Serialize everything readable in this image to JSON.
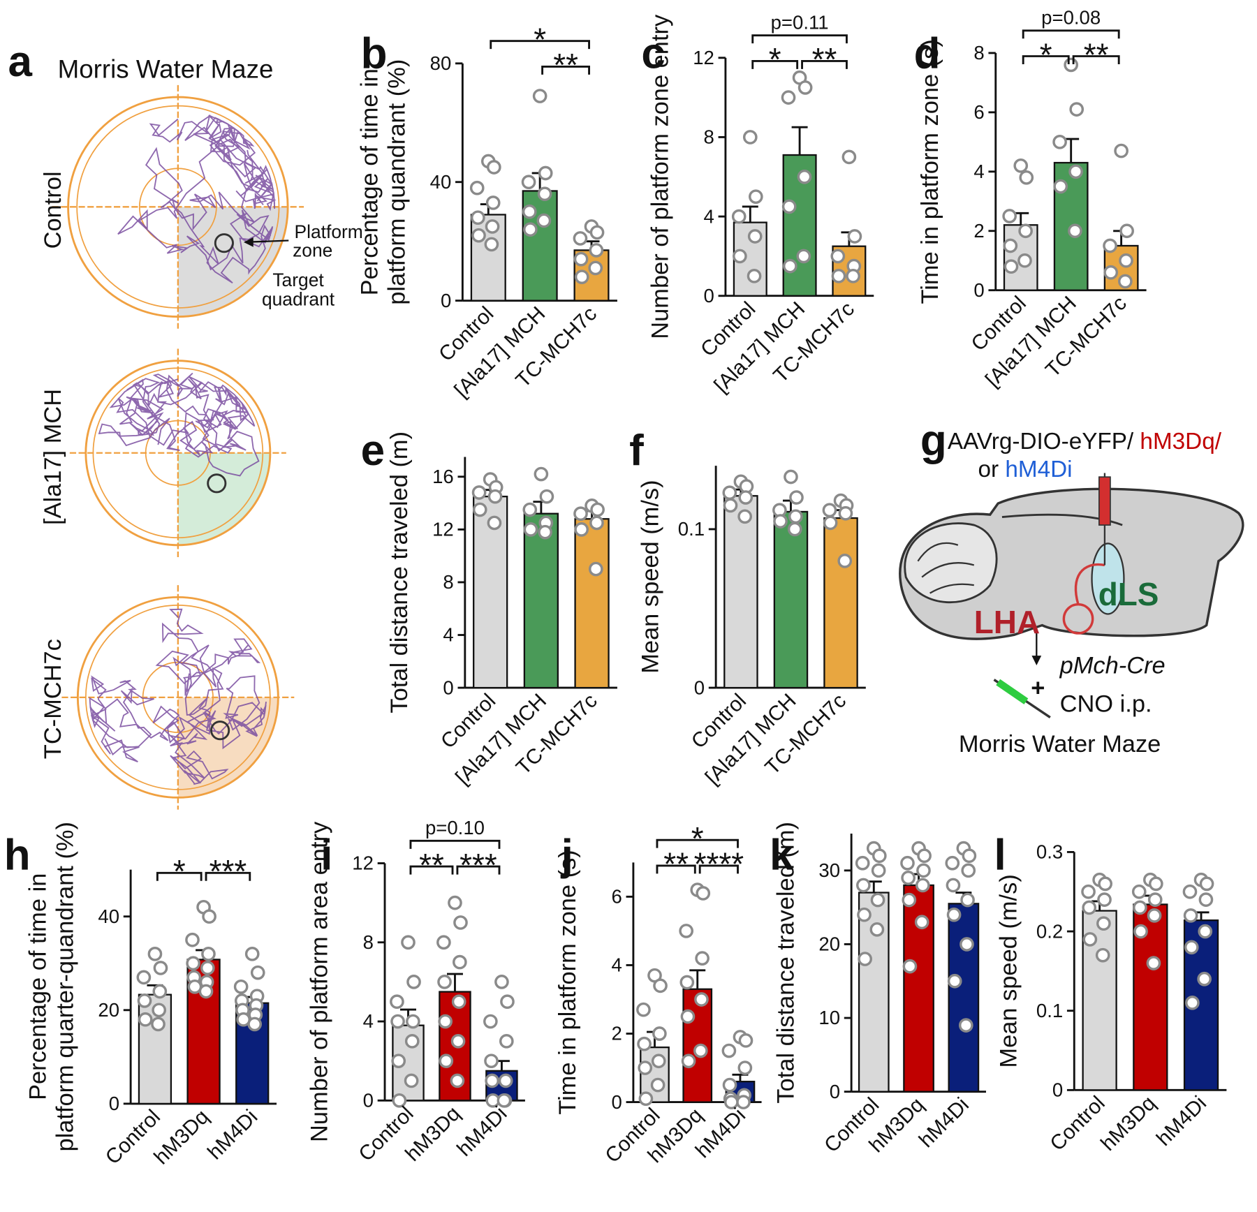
{
  "panel_a": {
    "label": "a",
    "title": "Morris Water Maze",
    "rows": [
      "Control",
      "[Ala17] MCH",
      "TC-MCH7c"
    ],
    "platform_zone": [
      "Platform",
      "zone"
    ],
    "target_quadrant": [
      "Target",
      "quadrant"
    ]
  },
  "panel_g": {
    "label": "g",
    "virus": [
      "AAVrg-DIO-eYFP/",
      " hM3Dq/",
      "or ",
      "hM4Di"
    ],
    "regions": [
      "LHA",
      "dLS"
    ],
    "mouse": "pMch-Cre",
    "plus": "+",
    "drug": "CNO i.p.",
    "task": "Morris Water Maze"
  },
  "chart_data": [
    {
      "type": "bar",
      "panel": "b",
      "ylabel": [
        "Percentage of time in",
        "platform quandrant (%)"
      ],
      "categories": [
        "Control",
        "[Ala17] MCH",
        "TC-MCH7c"
      ],
      "colors": [
        "#d9d9d9",
        "#4a9a58",
        "#e8a640"
      ],
      "values": [
        29,
        37,
        17
      ],
      "errors": [
        3.5,
        6,
        3
      ],
      "points": [
        [
          47,
          45,
          38,
          33,
          28,
          25,
          22,
          19
        ],
        [
          69,
          43,
          40,
          36,
          30,
          27,
          24
        ],
        [
          25,
          23,
          21,
          17,
          14,
          11,
          8
        ]
      ],
      "ylim": [
        0,
        80
      ],
      "yticks": [
        0,
        40,
        80
      ],
      "significance": [
        {
          "text": "*",
          "between": [
            "Control",
            "TC-MCH7c"
          ]
        },
        {
          "text": "**",
          "between": [
            "[Ala17] MCH",
            "TC-MCH7c"
          ]
        }
      ]
    },
    {
      "type": "bar",
      "panel": "c",
      "ylabel": [
        "Number of platform zone entry"
      ],
      "categories": [
        "Control",
        "[Ala17] MCH",
        "TC-MCH7c"
      ],
      "colors": [
        "#d9d9d9",
        "#4a9a58",
        "#e8a640"
      ],
      "values": [
        3.7,
        7.1,
        2.5
      ],
      "errors": [
        0.8,
        1.4,
        0.7
      ],
      "points": [
        [
          8,
          5,
          4,
          3,
          2,
          1
        ],
        [
          11,
          10.5,
          10,
          6,
          4.5,
          2,
          1.5
        ],
        [
          7,
          3,
          2,
          1.5,
          1,
          1
        ]
      ],
      "ylim": [
        0,
        12
      ],
      "yticks": [
        0,
        4,
        8,
        12
      ],
      "significance": [
        {
          "text": "p=0.11",
          "between": [
            "Control",
            "TC-MCH7c"
          ]
        },
        {
          "text": "*",
          "between": [
            "Control",
            "[Ala17] MCH"
          ]
        },
        {
          "text": "**",
          "between": [
            "[Ala17] MCH",
            "TC-MCH7c"
          ]
        }
      ]
    },
    {
      "type": "bar",
      "panel": "d",
      "ylabel": [
        "Time in platform zone (s)"
      ],
      "categories": [
        "Control",
        "[Ala17] MCH",
        "TC-MCH7c"
      ],
      "colors": [
        "#d9d9d9",
        "#4a9a58",
        "#e8a640"
      ],
      "values": [
        2.2,
        4.3,
        1.5
      ],
      "errors": [
        0.4,
        0.8,
        0.5
      ],
      "points": [
        [
          4.2,
          3.8,
          2.5,
          2,
          1.5,
          1,
          0.8
        ],
        [
          7.6,
          6.1,
          5,
          4,
          3.5,
          2
        ],
        [
          4.7,
          2,
          1.5,
          1,
          0.6,
          0.3
        ]
      ],
      "ylim": [
        0,
        8
      ],
      "yticks": [
        0,
        2,
        4,
        6,
        8
      ],
      "significance": [
        {
          "text": "p=0.08",
          "between": [
            "Control",
            "TC-MCH7c"
          ]
        },
        {
          "text": "*",
          "between": [
            "Control",
            "[Ala17] MCH"
          ]
        },
        {
          "text": "**",
          "between": [
            "[Ala17] MCH",
            "TC-MCH7c"
          ]
        }
      ]
    },
    {
      "type": "bar",
      "panel": "e",
      "ylabel": [
        "Total distance traveled (m)"
      ],
      "categories": [
        "Control",
        "[Ala17] MCH",
        "TC-MCH7c"
      ],
      "colors": [
        "#d9d9d9",
        "#4a9a58",
        "#e8a640"
      ],
      "values": [
        14.5,
        13.2,
        12.8
      ],
      "errors": [
        0.5,
        0.9,
        0.6
      ],
      "points": [
        [
          15.8,
          15.2,
          14.8,
          14.5,
          13.5,
          12.5
        ],
        [
          16.2,
          14.5,
          13.5,
          12.5,
          12,
          11.8
        ],
        [
          13.8,
          13.5,
          13.2,
          12.5,
          12,
          9
        ]
      ],
      "ylim": [
        0,
        17.5
      ],
      "yticks": [
        0,
        4,
        8,
        12,
        16
      ],
      "significance": []
    },
    {
      "type": "bar",
      "panel": "f",
      "ylabel": [
        "Mean speed (m/s)"
      ],
      "categories": [
        "Control",
        "[Ala17] MCH",
        "TC-MCH7c"
      ],
      "colors": [
        "#d9d9d9",
        "#4a9a58",
        "#e8a640"
      ],
      "values": [
        0.121,
        0.111,
        0.107
      ],
      "errors": [
        0.004,
        0.007,
        0.005
      ],
      "points": [
        [
          0.13,
          0.127,
          0.123,
          0.12,
          0.115,
          0.108
        ],
        [
          0.133,
          0.12,
          0.112,
          0.108,
          0.105,
          0.1
        ],
        [
          0.118,
          0.115,
          0.112,
          0.11,
          0.104,
          0.08
        ]
      ],
      "ylim": [
        0,
        0.14
      ],
      "yticks": [
        0,
        0.1
      ],
      "significance": []
    },
    {
      "type": "bar",
      "panel": "h",
      "ylabel": [
        "Percentage of time in",
        "platform quarter-quandrant (%)"
      ],
      "categories": [
        "Control",
        "hM3Dq",
        "hM4Di"
      ],
      "colors": [
        "#d9d9d9",
        "#c00000",
        "#0a1f7a"
      ],
      "values": [
        23.3,
        30.8,
        21.5
      ],
      "errors": [
        2,
        2,
        1.3
      ],
      "points": [
        [
          32,
          29,
          27,
          24,
          22,
          20,
          18,
          17
        ],
        [
          42,
          40,
          35,
          32,
          30,
          29,
          27,
          26,
          25,
          24
        ],
        [
          32,
          28,
          25,
          23,
          22,
          21,
          20,
          19,
          18,
          17
        ]
      ],
      "ylim": [
        0,
        50
      ],
      "yticks": [
        0,
        20,
        40
      ],
      "significance": [
        {
          "text": "*",
          "between": [
            "Control",
            "hM3Dq"
          ]
        },
        {
          "text": "***",
          "between": [
            "hM3Dq",
            "hM4Di"
          ]
        }
      ]
    },
    {
      "type": "bar",
      "panel": "i",
      "ylabel": [
        "Number of platform area entry"
      ],
      "categories": [
        "Control",
        "hM3Dq",
        "hM4Di"
      ],
      "colors": [
        "#d9d9d9",
        "#c00000",
        "#0a1f7a"
      ],
      "values": [
        3.8,
        5.5,
        1.5
      ],
      "errors": [
        0.8,
        0.9,
        0.5
      ],
      "points": [
        [
          8,
          6,
          5,
          4,
          4,
          3,
          2,
          1,
          0
        ],
        [
          10,
          9,
          8,
          7,
          6,
          5,
          4,
          3,
          2,
          1
        ],
        [
          6,
          5,
          4,
          3,
          2,
          1,
          1,
          0,
          0,
          0
        ]
      ],
      "ylim": [
        0,
        12
      ],
      "yticks": [
        0,
        4,
        8,
        12
      ],
      "significance": [
        {
          "text": "p=0.10",
          "between": [
            "Control",
            "hM4Di"
          ]
        },
        {
          "text": "**",
          "between": [
            "Control",
            "hM3Dq"
          ]
        },
        {
          "text": "***",
          "between": [
            "hM3Dq",
            "hM4Di"
          ]
        }
      ]
    },
    {
      "type": "bar",
      "panel": "j",
      "ylabel": [
        "Time in platform zone (s)"
      ],
      "categories": [
        "Control",
        "hM3Dq",
        "hM4Di"
      ],
      "colors": [
        "#d9d9d9",
        "#c00000",
        "#0a1f7a"
      ],
      "values": [
        1.6,
        3.3,
        0.6
      ],
      "errors": [
        0.45,
        0.55,
        0.2
      ],
      "points": [
        [
          3.7,
          3.4,
          2.7,
          2,
          1.7,
          1.2,
          1,
          0.5,
          0.1
        ],
        [
          6.2,
          6.1,
          5,
          4.2,
          3.5,
          3,
          2.5,
          1.5,
          1.2
        ],
        [
          1.9,
          1.8,
          1.5,
          1,
          0.5,
          0.2,
          0.1,
          0,
          0
        ]
      ],
      "ylim": [
        0,
        7
      ],
      "yticks": [
        0,
        2,
        4,
        6
      ],
      "significance": [
        {
          "text": "*",
          "between": [
            "Control",
            "hM4Di"
          ]
        },
        {
          "text": "**",
          "between": [
            "Control",
            "hM3Dq"
          ]
        },
        {
          "text": "****",
          "between": [
            "hM3Dq",
            "hM4Di"
          ]
        }
      ]
    },
    {
      "type": "bar",
      "panel": "k",
      "ylabel": [
        "Total distance traveled (m)"
      ],
      "categories": [
        "Control",
        "hM3Dq",
        "hM4Di"
      ],
      "colors": [
        "#d9d9d9",
        "#c00000",
        "#0a1f7a"
      ],
      "values": [
        27,
        28,
        25.5
      ],
      "errors": [
        1.5,
        1.5,
        1.5
      ],
      "points": [
        [
          33,
          32,
          31,
          30,
          28,
          26,
          24,
          22,
          18
        ],
        [
          33,
          32,
          31,
          30,
          29,
          28,
          26,
          23,
          17
        ],
        [
          33,
          32,
          31,
          30,
          28,
          26,
          24,
          20,
          15,
          9
        ]
      ],
      "ylim": [
        0,
        35
      ],
      "yticks": [
        0,
        10,
        20,
        30
      ],
      "significance": []
    },
    {
      "type": "bar",
      "panel": "l",
      "ylabel": [
        "Mean speed (m/s)"
      ],
      "categories": [
        "Control",
        "hM3Dq",
        "hM4Di"
      ],
      "colors": [
        "#d9d9d9",
        "#c00000",
        "#0a1f7a"
      ],
      "values": [
        0.226,
        0.234,
        0.214
      ],
      "errors": [
        0.012,
        0.011,
        0.01
      ],
      "points": [
        [
          0.265,
          0.26,
          0.25,
          0.24,
          0.23,
          0.21,
          0.19,
          0.17
        ],
        [
          0.265,
          0.26,
          0.25,
          0.24,
          0.23,
          0.22,
          0.2,
          0.16
        ],
        [
          0.265,
          0.26,
          0.25,
          0.24,
          0.22,
          0.2,
          0.18,
          0.14,
          0.11
        ]
      ],
      "ylim": [
        0,
        0.3
      ],
      "yticks": [
        0,
        0.1,
        0.2,
        0.3
      ],
      "significance": []
    }
  ]
}
